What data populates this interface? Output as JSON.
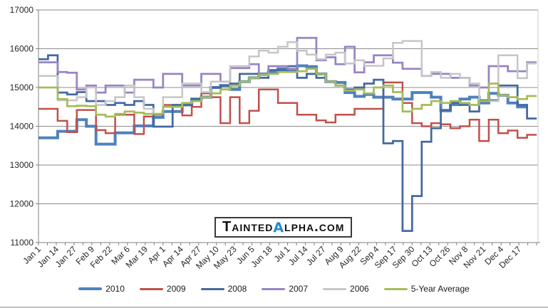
{
  "watermark": {
    "prefix": "Tainted",
    "alpha": "α",
    "suffix": "lpha.com",
    "alpha_color": "#1E8BD1"
  },
  "chart_data": {
    "type": "line",
    "subtype": "weekly-step",
    "title": "",
    "xlabel": "",
    "ylabel": "",
    "ylim": [
      11000,
      17000
    ],
    "y_ticks": [
      11000,
      12000,
      13000,
      14000,
      15000,
      16000,
      17000
    ],
    "grid": "horizontal",
    "grid_color": "#8C8C8C",
    "axis_color": "#808080",
    "plot_right_border_color": "#C9C9C9",
    "legend_position": "bottom",
    "x_total_days": 365,
    "week_length_days": 7,
    "x_tick_labels": [
      "Jan 1",
      "Jan 14",
      "Jan 27",
      "Feb 9",
      "Feb 22",
      "Mar 6",
      "Mar 19",
      "Apr 1",
      "Apr 14",
      "Apr 27",
      "May 10",
      "May 23",
      "Jun 5",
      "Jun 18",
      "Jul 1",
      "Jul 14",
      "Jul 27",
      "Aug 9",
      "Aug 22",
      "Sep 4",
      "Sep 17",
      "Sep 30",
      "Oct 13",
      "Oct 26",
      "Nov 8",
      "Nov 21",
      "Dec 4",
      "Dec 17"
    ],
    "x_tick_label_days": [
      0,
      13,
      26,
      39,
      52,
      65,
      78,
      91,
      104,
      117,
      130,
      143,
      156,
      169,
      182,
      195,
      208,
      221,
      234,
      247,
      260,
      273,
      286,
      299,
      312,
      325,
      338,
      351
    ],
    "series": [
      {
        "name": "2010",
        "color": "#4F81BD",
        "width": 4,
        "values": [
          13700,
          13700,
          13870,
          13870,
          14170,
          14000,
          13540,
          13540,
          13830,
          13830,
          14010,
          14010,
          14230,
          14380,
          14380,
          14550,
          14700,
          14750,
          15000,
          15050,
          14950,
          15150,
          15250,
          15350,
          15400,
          15480,
          15450,
          15560,
          15540,
          15350,
          15150,
          15130,
          14870,
          14770,
          14820,
          14750,
          14750,
          14700,
          14700,
          14870,
          14870,
          14750,
          14400,
          14560,
          14700,
          14750,
          14600,
          14850,
          14800,
          14600,
          14500
        ]
      },
      {
        "name": "2009",
        "color": "#C0504D",
        "width": 2.5,
        "values": [
          14450,
          14450,
          14140,
          13850,
          14420,
          14420,
          13900,
          13820,
          14300,
          14300,
          13800,
          14250,
          14300,
          14550,
          14550,
          14280,
          14500,
          14850,
          14750,
          14080,
          14750,
          14080,
          14400,
          14950,
          14950,
          14600,
          14600,
          14300,
          14300,
          14150,
          14100,
          14300,
          14300,
          14450,
          14450,
          14450,
          15130,
          15130,
          14600,
          14080,
          14000,
          14080,
          14050,
          13950,
          14000,
          14170,
          13620,
          14170,
          13820,
          13890,
          13700,
          13780
        ]
      },
      {
        "name": "2008",
        "color": "#45699E",
        "width": 2.75,
        "values": [
          15730,
          15830,
          14870,
          14820,
          14880,
          14650,
          14650,
          14550,
          14600,
          14550,
          14650,
          14550,
          13990,
          13990,
          14550,
          14550,
          14700,
          14760,
          15000,
          15050,
          15100,
          15350,
          15350,
          15250,
          15450,
          15450,
          15550,
          15250,
          15350,
          15250,
          15150,
          15050,
          14950,
          15000,
          15100,
          15200,
          13560,
          13620,
          11300,
          12200,
          13600,
          13950,
          14420,
          14600,
          14550,
          14380,
          14670,
          14670,
          15050,
          15050,
          14550,
          14200
        ]
      },
      {
        "name": "2007",
        "color": "#9884C4",
        "width": 2.75,
        "values": [
          15650,
          15650,
          15400,
          15380,
          14950,
          15050,
          14870,
          15050,
          15050,
          14870,
          15200,
          15200,
          15000,
          15350,
          15350,
          15050,
          15050,
          15350,
          15350,
          15150,
          15500,
          15500,
          15600,
          15350,
          15550,
          15550,
          15480,
          16280,
          16280,
          15700,
          15780,
          15600,
          16050,
          15390,
          15650,
          15830,
          15830,
          15640,
          15480,
          15480,
          15300,
          15350,
          15350,
          15250,
          15250,
          15050,
          15000,
          15550,
          15550,
          15420,
          15420,
          15650
        ]
      },
      {
        "name": "2006",
        "color": "#C6C6C8",
        "width": 2.5,
        "values": [
          15300,
          15300,
          14670,
          14670,
          14750,
          15000,
          14550,
          14650,
          14750,
          15050,
          14750,
          14450,
          14320,
          14750,
          14750,
          15100,
          15100,
          14880,
          15150,
          15150,
          15550,
          15550,
          15800,
          15950,
          15900,
          16050,
          16170,
          15950,
          15850,
          15730,
          15850,
          15900,
          15620,
          15700,
          15560,
          15560,
          15750,
          16150,
          16200,
          16200,
          15300,
          15400,
          15250,
          15350,
          15250,
          15100,
          14650,
          14650,
          15830,
          15830,
          15240,
          15620
        ]
      },
      {
        "name": "5-Year Average",
        "color": "#A5BC59",
        "width": 2.75,
        "values": [
          15000,
          15000,
          14700,
          14520,
          14530,
          14520,
          14300,
          14250,
          14320,
          14380,
          14350,
          14320,
          14320,
          14500,
          14500,
          14600,
          14650,
          14750,
          14850,
          14950,
          15050,
          15150,
          15250,
          15320,
          15350,
          15400,
          15400,
          15420,
          15480,
          15350,
          15150,
          15050,
          14920,
          14950,
          14850,
          15000,
          15050,
          14880,
          14380,
          14450,
          14550,
          14650,
          14600,
          14650,
          14600,
          14550,
          14650,
          15100,
          14800,
          14750,
          14700,
          14780
        ]
      }
    ]
  }
}
